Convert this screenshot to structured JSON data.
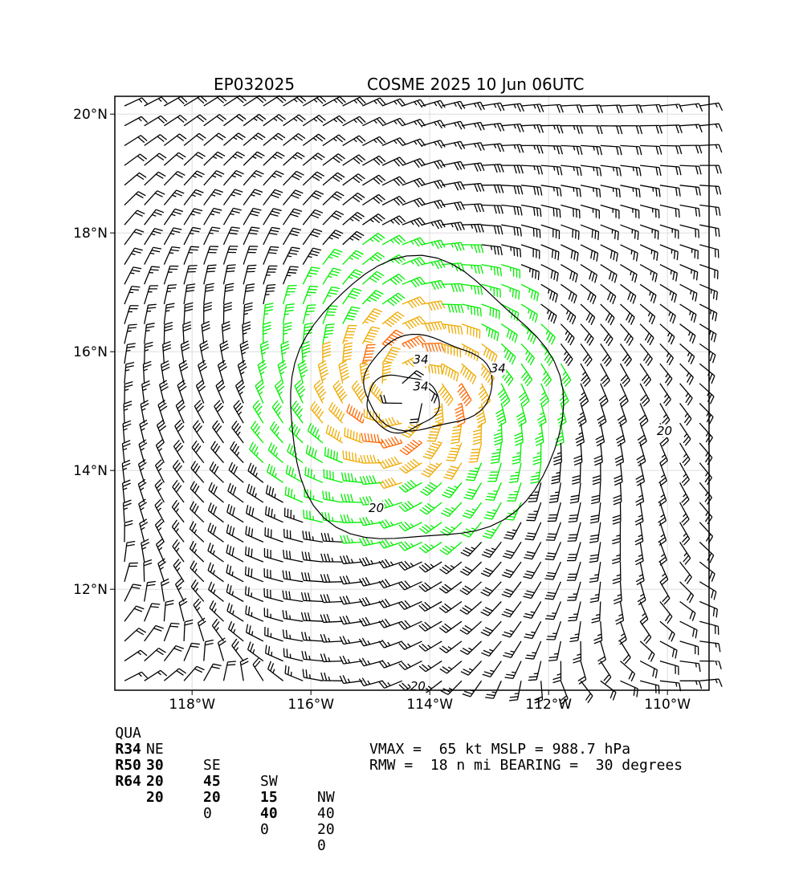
{
  "title_left": "EP032025",
  "title_right": "COSME 2025 10 Jun 06UTC",
  "chart_data": {
    "type": "wind_barb_map",
    "lon_range": [
      -119.3,
      -109.3
    ],
    "lat_range": [
      10.3,
      20.3
    ],
    "x_ticks": [
      "118°W",
      "116°W",
      "114°W",
      "112°W",
      "110°W"
    ],
    "x_tick_values": [
      -118,
      -116,
      -114,
      -112,
      -110
    ],
    "y_ticks": [
      "12°N",
      "14°N",
      "16°N",
      "18°N",
      "20°N"
    ],
    "y_tick_values": [
      12,
      14,
      16,
      18,
      20
    ],
    "grid": true,
    "storm_center": {
      "lon": -114.4,
      "lat": 15.3
    },
    "contour_labels": [
      {
        "text": "34",
        "lon": -114.15,
        "lat": 15.8,
        "color": "#000000"
      },
      {
        "text": "34",
        "lon": -114.15,
        "lat": 15.35,
        "color": "#000000"
      },
      {
        "text": "34",
        "lon": -112.85,
        "lat": 15.65,
        "color": "#000000"
      },
      {
        "text": "20",
        "lon": -114.9,
        "lat": 13.3,
        "color": "#000000"
      },
      {
        "text": "20",
        "lon": -110.05,
        "lat": 14.6,
        "color": "#000000"
      },
      {
        "text": "20",
        "lon": -114.2,
        "lat": 10.3,
        "color": "#000000"
      }
    ],
    "colors": {
      "calm": "#000000",
      "gale": "#00ee00",
      "storm": "#eeaa00",
      "hurricane": "#ff6600",
      "contour": "#000000",
      "grid": "#dddddd"
    }
  },
  "wind_radii": {
    "header": [
      "QUA",
      "NE",
      "SE",
      "SW",
      "NW"
    ],
    "rows": [
      [
        "R34",
        "30",
        "45",
        "15",
        "40"
      ],
      [
        "R50",
        "20",
        "20",
        "40",
        "20"
      ],
      [
        "R64",
        "20",
        "0",
        "0",
        "0"
      ]
    ]
  },
  "stats": {
    "line1": "VMAX =  65 kt MSLP = 988.7 hPa",
    "line2": "RMW =  18 n mi BEARING =  30 degrees"
  }
}
